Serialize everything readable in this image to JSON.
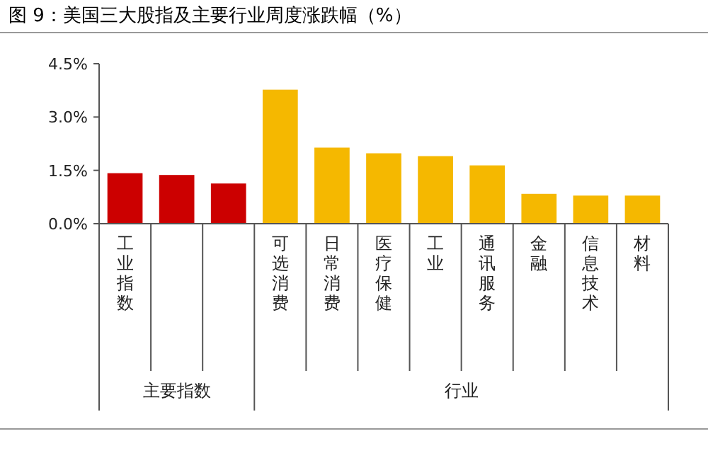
{
  "chart_data": {
    "type": "bar",
    "title": "图 9：美国三大股指及主要行业周度涨跌幅（%）",
    "categories": [
      "工业指数",
      null,
      null,
      "可选消费",
      "日常消费",
      "医疗保健",
      "工业",
      "通讯服务",
      "金融",
      "信息技术",
      "材料"
    ],
    "values": [
      1.42,
      1.37,
      1.13,
      3.77,
      2.14,
      1.98,
      1.9,
      1.64,
      0.84,
      0.79,
      0.79
    ],
    "colors": [
      "#cc0000",
      "#cc0000",
      "#cc0000",
      "#f5b800",
      "#f5b800",
      "#f5b800",
      "#f5b800",
      "#f5b800",
      "#f5b800",
      "#f5b800",
      "#f5b800"
    ],
    "ylim": [
      0,
      4.5
    ],
    "yticks": [
      {
        "value": 0,
        "label": "0.0%"
      },
      {
        "value": 1.5,
        "label": "1.5%"
      },
      {
        "value": 3,
        "label": "3.0%"
      },
      {
        "value": 4.5,
        "label": "4.5%"
      }
    ],
    "annotations": [
      "主要指数",
      "行业"
    ],
    "grid": false
  }
}
